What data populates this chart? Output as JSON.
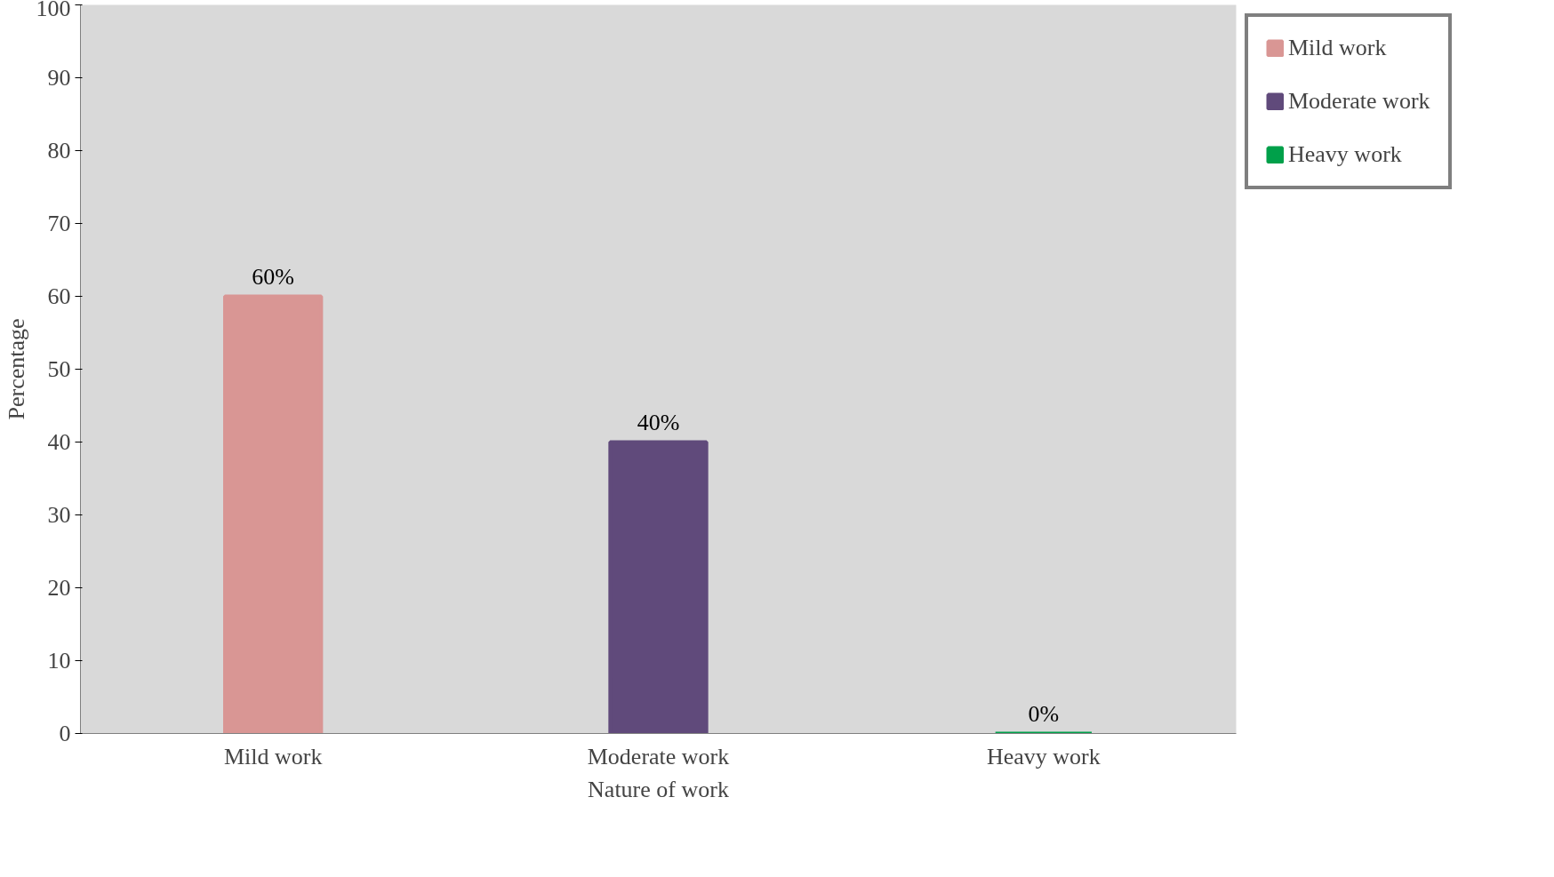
{
  "chart_data": {
    "type": "bar",
    "xlabel": "Nature of work",
    "ylabel": "Percentage",
    "categories": [
      "Mild work",
      "Moderate work",
      "Heavy work"
    ],
    "series": [
      {
        "name": "Mild work",
        "color": "#d99694",
        "values": [
          60,
          null,
          null
        ],
        "value_labels": [
          "60%",
          null,
          null
        ]
      },
      {
        "name": "Moderate work",
        "color": "#604a7b",
        "values": [
          null,
          40,
          null
        ],
        "value_labels": [
          null,
          "40%",
          null
        ]
      },
      {
        "name": "Heavy work",
        "color": "#00a04a",
        "values": [
          null,
          null,
          0
        ],
        "value_labels": [
          null,
          null,
          "0%"
        ]
      }
    ],
    "ylim": [
      0,
      100
    ],
    "yticks": [
      0,
      10,
      20,
      30,
      40,
      50,
      60,
      70,
      80,
      90,
      100
    ],
    "grid": false,
    "legend": "top right"
  }
}
